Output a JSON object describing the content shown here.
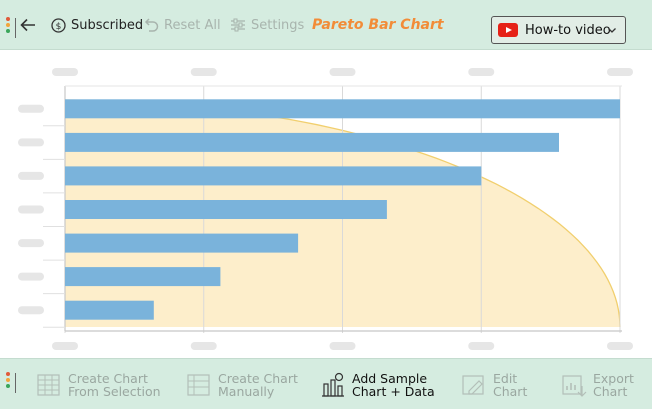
{
  "toolbar": {
    "subscribed_label": "Subscribed",
    "reset_label": "Reset All",
    "settings_label": "Settings",
    "title": "Pareto Bar Chart",
    "howto_label": "How-to video"
  },
  "bottombar": {
    "create_selection": [
      "Create Chart",
      "From Selection"
    ],
    "create_manual": [
      "Create Chart",
      "Manually"
    ],
    "add_sample": [
      "Add Sample",
      "Chart + Data"
    ],
    "edit_chart": [
      "Edit",
      "Chart"
    ],
    "export_chart": [
      "Export",
      "Chart"
    ]
  },
  "colors": {
    "bar": "#7ab3db",
    "area_fill": "#fdeecb",
    "area_line": "#f1cf6e",
    "accent": "#f28c38",
    "toolbar_bg": "#d5ece0"
  },
  "chart_data": {
    "type": "bar",
    "orientation": "horizontal",
    "categories": [
      "",
      "",
      "",
      "",
      "",
      "",
      ""
    ],
    "values": [
      100,
      89,
      75,
      58,
      42,
      28,
      16
    ],
    "xlim": [
      0,
      100
    ],
    "tick_labels_shown": false,
    "grid": true,
    "cumulative_curve": true
  }
}
